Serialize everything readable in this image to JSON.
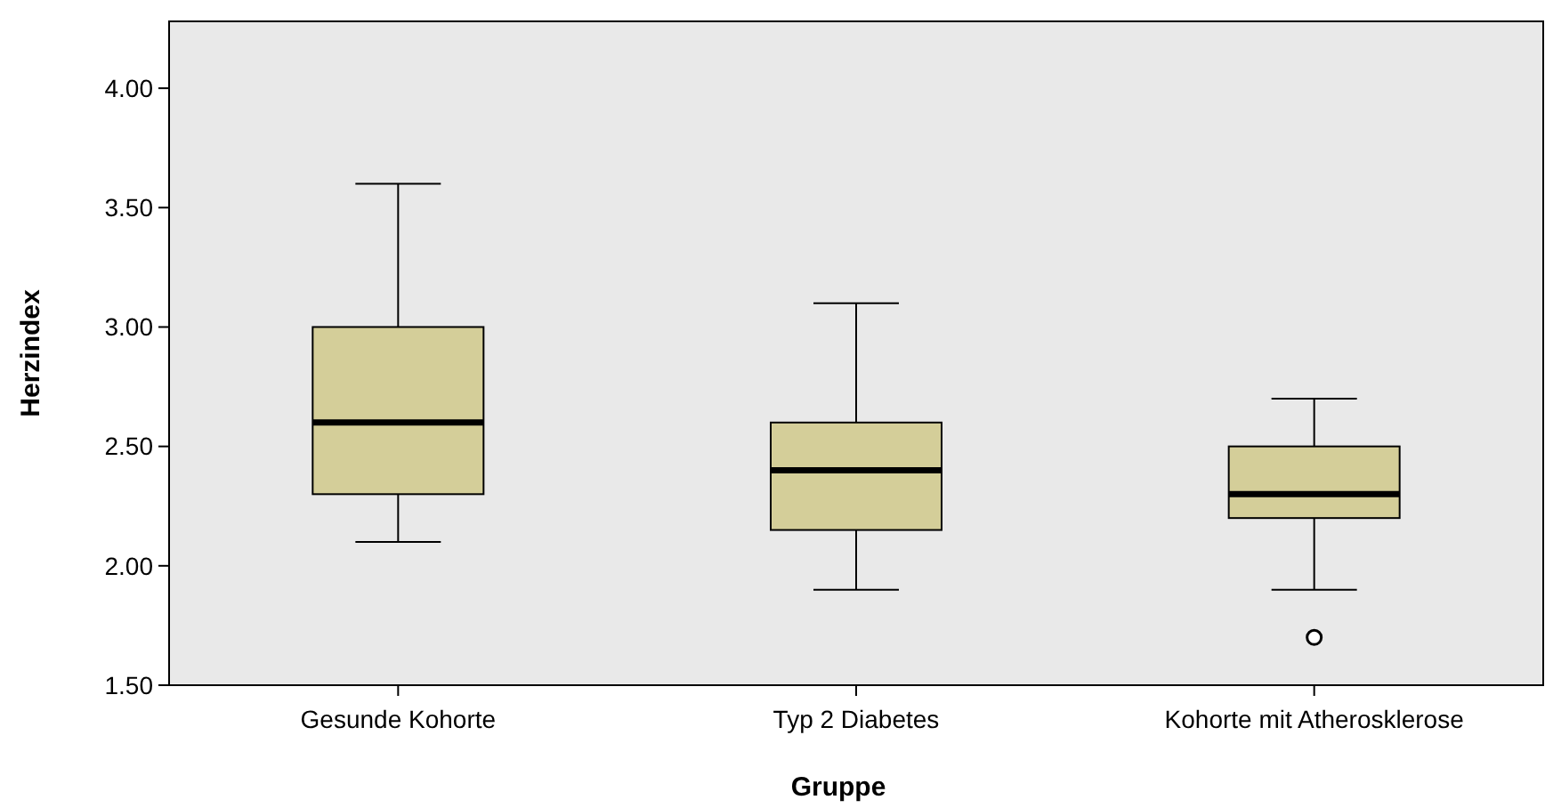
{
  "chart_data": {
    "type": "box",
    "xlabel": "Gruppe",
    "ylabel": "Herzindex",
    "categories": [
      "Gesunde Kohorte",
      "Typ 2 Diabetes",
      "Kohorte mit Atherosklerose"
    ],
    "color": "#d4ce99",
    "boxes": [
      {
        "low": 2.1,
        "q1": 2.3,
        "median": 2.6,
        "q3": 3.0,
        "high": 3.6
      },
      {
        "low": 1.9,
        "q1": 2.15,
        "median": 2.4,
        "q3": 2.6,
        "high": 3.1
      },
      {
        "low": 1.9,
        "q1": 2.2,
        "median": 2.3,
        "q3": 2.5,
        "high": 2.7,
        "outliers": [
          1.7
        ]
      }
    ],
    "ylim": [
      1.5,
      4.28
    ],
    "yticks": [
      {
        "value": 1.5,
        "label": "1.50"
      },
      {
        "value": 2,
        "label": "2.00"
      },
      {
        "value": 2.5,
        "label": "2.50"
      },
      {
        "value": 3,
        "label": "3.00"
      },
      {
        "value": 3.5,
        "label": "3.50"
      },
      {
        "value": 4,
        "label": "4.00"
      }
    ],
    "grid": false
  }
}
